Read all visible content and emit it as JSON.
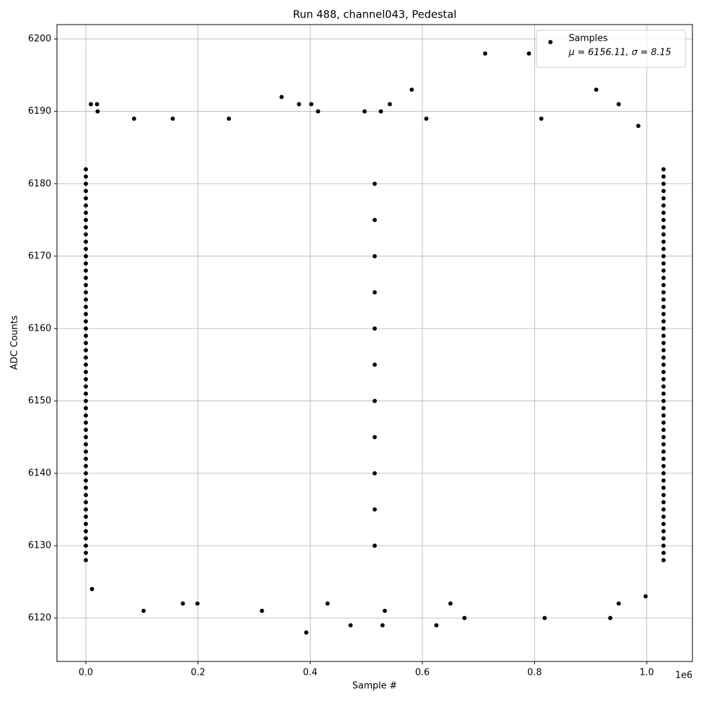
{
  "chart_data": {
    "type": "scatter",
    "title": "Run 488, channel043, Pedestal",
    "x_label": "Sample #",
    "y_label": "ADC Counts",
    "x_offset_label": "1e6",
    "legend": {
      "corner": "upper right",
      "stats": "μ = 6156.11, σ = 8.15"
    },
    "grid": true,
    "xlim": [
      -51500,
      1081500
    ],
    "ylim": [
      6114,
      6202
    ],
    "xticks": [
      {
        "value": 0,
        "label": "0.0"
      },
      {
        "value": 200000,
        "label": "0.2"
      },
      {
        "value": 400000,
        "label": "0.4"
      },
      {
        "value": 600000,
        "label": "0.6"
      },
      {
        "value": 800000,
        "label": "0.8"
      },
      {
        "value": 1000000,
        "label": "1.0"
      }
    ],
    "yticks": [
      6120,
      6130,
      6140,
      6150,
      6160,
      6170,
      6180,
      6190,
      6200
    ],
    "series": [
      {
        "name": "Samples",
        "color": "#000000",
        "x": [
          0,
          0,
          0,
          0,
          0,
          0,
          0,
          0,
          0,
          0,
          0,
          0,
          0,
          0,
          0,
          0,
          0,
          0,
          0,
          0,
          0,
          0,
          0,
          0,
          0,
          0,
          0,
          0,
          0,
          0,
          0,
          0,
          0,
          0,
          0,
          0,
          0,
          0,
          0,
          0,
          0,
          0,
          0,
          0,
          0,
          0,
          0,
          0,
          0,
          0,
          0,
          0,
          0,
          0,
          0,
          1030000,
          1030000,
          1030000,
          1030000,
          1030000,
          1030000,
          1030000,
          1030000,
          1030000,
          1030000,
          1030000,
          1030000,
          1030000,
          1030000,
          1030000,
          1030000,
          1030000,
          1030000,
          1030000,
          1030000,
          1030000,
          1030000,
          1030000,
          1030000,
          1030000,
          1030000,
          1030000,
          1030000,
          1030000,
          1030000,
          1030000,
          1030000,
          1030000,
          1030000,
          1030000,
          1030000,
          1030000,
          1030000,
          1030000,
          1030000,
          1030000,
          1030000,
          1030000,
          1030000,
          1030000,
          1030000,
          1030000,
          1030000,
          1030000,
          1030000,
          1030000,
          1030000,
          1030000,
          1030000,
          1030000,
          515000,
          515000,
          515000,
          515000,
          515000,
          515000,
          515000,
          515000,
          515000,
          515000,
          515000,
          9000,
          20000,
          21000,
          86000,
          155000,
          255000,
          349000,
          380000,
          402000,
          414000,
          497000,
          526000,
          542000,
          581000,
          607000,
          712000,
          790000,
          812000,
          910000,
          950000,
          985000,
          103000,
          173000,
          199000,
          314000,
          393000,
          431000,
          472000,
          529000,
          533000,
          625000,
          650000,
          675000,
          818000,
          935000,
          950000,
          998000,
          11000
        ],
        "y": [
          6128,
          6129,
          6130,
          6131,
          6132,
          6133,
          6134,
          6135,
          6136,
          6137,
          6138,
          6139,
          6140,
          6141,
          6142,
          6143,
          6144,
          6145,
          6146,
          6147,
          6148,
          6149,
          6150,
          6151,
          6152,
          6153,
          6154,
          6155,
          6156,
          6157,
          6158,
          6159,
          6160,
          6161,
          6162,
          6163,
          6164,
          6165,
          6166,
          6167,
          6168,
          6169,
          6170,
          6171,
          6172,
          6173,
          6174,
          6175,
          6176,
          6177,
          6178,
          6179,
          6180,
          6181,
          6182,
          6128,
          6129,
          6130,
          6131,
          6132,
          6133,
          6134,
          6135,
          6136,
          6137,
          6138,
          6139,
          6140,
          6141,
          6142,
          6143,
          6144,
          6145,
          6146,
          6147,
          6148,
          6149,
          6150,
          6151,
          6152,
          6153,
          6154,
          6155,
          6156,
          6157,
          6158,
          6159,
          6160,
          6161,
          6162,
          6163,
          6164,
          6165,
          6166,
          6167,
          6168,
          6169,
          6170,
          6171,
          6172,
          6173,
          6174,
          6175,
          6176,
          6177,
          6178,
          6179,
          6180,
          6181,
          6182,
          6130,
          6135,
          6140,
          6145,
          6150,
          6155,
          6160,
          6165,
          6170,
          6175,
          6180,
          6191,
          6191,
          6190,
          6189,
          6189,
          6189,
          6192,
          6191,
          6191,
          6190,
          6190,
          6190,
          6191,
          6193,
          6189,
          6198,
          6198,
          6189,
          6193,
          6191,
          6188,
          6121,
          6122,
          6122,
          6121,
          6118,
          6122,
          6119,
          6119,
          6121,
          6119,
          6122,
          6120,
          6120,
          6120,
          6122,
          6123,
          6124
        ]
      }
    ]
  }
}
